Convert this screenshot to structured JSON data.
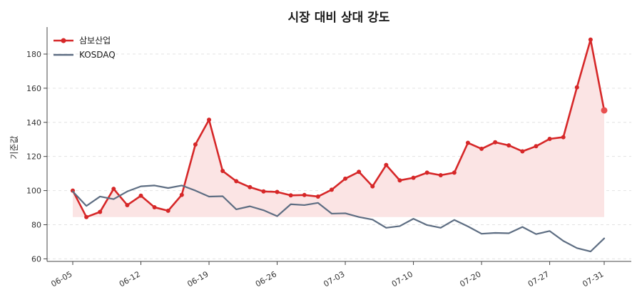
{
  "chart_data": {
    "type": "line",
    "title": "시장 대비 상대 강도",
    "ylabel": "기준값",
    "xlabel": "",
    "ylim": [
      58.5,
      195
    ],
    "yticks": [
      60,
      80,
      100,
      120,
      140,
      160,
      180
    ],
    "grid": "y-dashed",
    "legend_position": "top-left",
    "xticks": [
      "06-05",
      "06-12",
      "06-19",
      "06-26",
      "07-03",
      "07-10",
      "07-20",
      "07-27",
      "07-31"
    ],
    "xtick_index": [
      0,
      5,
      10,
      15,
      20,
      25,
      30,
      35,
      39
    ],
    "x": [
      "06-05",
      "06-06",
      "06-07",
      "06-08",
      "06-09",
      "06-12",
      "06-13",
      "06-14",
      "06-15",
      "06-16",
      "06-19",
      "06-20",
      "06-21",
      "06-22",
      "06-23",
      "06-26",
      "06-27",
      "06-28",
      "06-29",
      "06-30",
      "07-03",
      "07-04",
      "07-05",
      "07-06",
      "07-07",
      "07-10",
      "07-11",
      "07-12",
      "07-13",
      "07-14",
      "07-20",
      "07-21",
      "07-22",
      "07-23",
      "07-24",
      "07-27",
      "07-28",
      "07-29",
      "07-30",
      "07-31"
    ],
    "series": [
      {
        "name": "삼보산업",
        "color": "#d62728",
        "marker": "circle",
        "fill_base": 84.5,
        "fill_color": "#fbe4e4",
        "values": [
          100,
          84.5,
          87.5,
          101,
          91.5,
          97,
          90.2,
          88.2,
          97.5,
          127,
          141.5,
          111.5,
          105.5,
          102,
          99.5,
          99.2,
          97.2,
          97.4,
          96.5,
          100.5,
          107,
          111,
          102.5,
          115,
          106,
          107.5,
          110.5,
          109,
          110.5,
          128,
          124.5,
          128.3,
          126.5,
          123,
          126,
          130.3,
          131.3,
          160.5,
          188.5,
          147
        ]
      },
      {
        "name": "KOSDAQ",
        "color": "#5d6d82",
        "values": [
          99.5,
          91,
          96.5,
          95,
          99.5,
          102.5,
          103,
          101.5,
          103,
          100,
          96.5,
          96.7,
          89,
          90.8,
          88.5,
          85,
          92,
          91.5,
          92.8,
          86.5,
          86.7,
          84.5,
          83,
          78.2,
          79.2,
          83.5,
          79.8,
          78.2,
          82.8,
          79,
          74.7,
          75.2,
          75,
          78.7,
          74.5,
          76.3,
          70.5,
          66.3,
          64.3,
          72
        ]
      }
    ]
  }
}
